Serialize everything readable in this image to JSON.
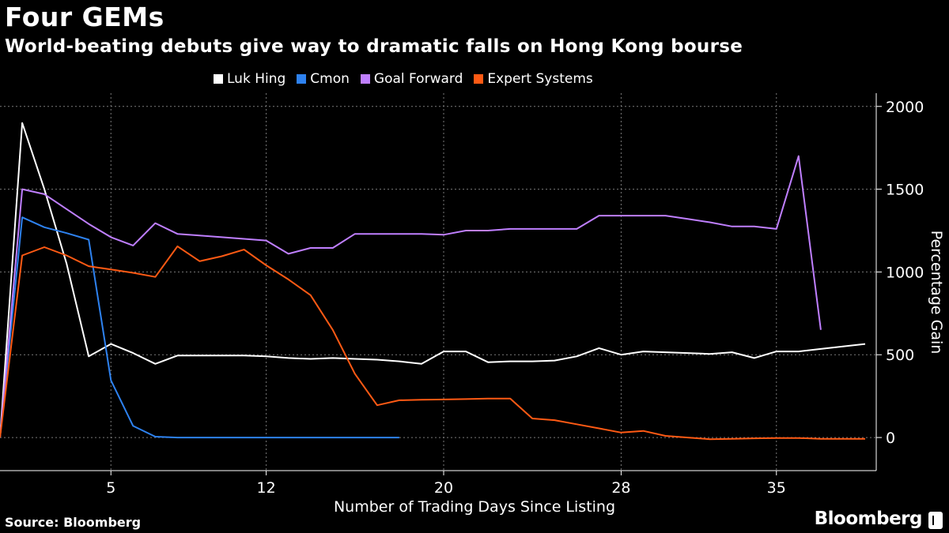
{
  "header": {
    "title": "Four GEMs",
    "subtitle": "World-beating debuts give way to dramatic falls on Hong Kong bourse"
  },
  "footer": {
    "source": "Source: Bloomberg",
    "brand": "Bloomberg"
  },
  "chart_data": {
    "type": "line",
    "xlabel": "Number of Trading Days Since Listing",
    "ylabel": "Percentage Gain",
    "xlim": [
      0,
      39.5
    ],
    "ylim": [
      -200,
      2080
    ],
    "x_ticks": [
      5,
      12,
      20,
      28,
      35
    ],
    "y_ticks": [
      0,
      500,
      1000,
      1500,
      2000
    ],
    "grid": true,
    "legend_position": "top",
    "series": [
      {
        "name": "Luk Hing",
        "color": "#ffffff",
        "x": [
          0,
          1,
          2,
          3,
          4,
          5,
          6,
          7,
          8,
          9,
          10,
          11,
          12,
          13,
          14,
          15,
          16,
          17,
          18,
          19,
          20,
          21,
          22,
          23,
          24,
          25,
          26,
          27,
          28,
          29,
          30,
          31,
          32,
          33,
          34,
          35,
          36,
          37,
          38,
          39
        ],
        "values": [
          0,
          1900,
          1500,
          1050,
          490,
          565,
          510,
          445,
          495,
          495,
          495,
          495,
          490,
          480,
          475,
          480,
          475,
          470,
          460,
          445,
          520,
          520,
          455,
          460,
          460,
          465,
          490,
          540,
          500,
          520,
          515,
          510,
          505,
          515,
          480,
          520,
          520,
          535,
          550,
          565
        ]
      },
      {
        "name": "Cmon",
        "color": "#2e82f0",
        "x": [
          0,
          1,
          2,
          3,
          4,
          5,
          6,
          7,
          8,
          9,
          10,
          11,
          12,
          13,
          14,
          15,
          16,
          17,
          18
        ],
        "values": [
          0,
          1330,
          1270,
          1235,
          1195,
          345,
          70,
          5,
          0,
          0,
          0,
          0,
          0,
          0,
          0,
          0,
          0,
          0,
          0
        ]
      },
      {
        "name": "Goal Forward",
        "color": "#bf7fff",
        "x": [
          0,
          1,
          2,
          3,
          4,
          5,
          6,
          7,
          8,
          9,
          10,
          11,
          12,
          13,
          14,
          15,
          16,
          17,
          18,
          19,
          20,
          21,
          22,
          23,
          24,
          25,
          26,
          27,
          28,
          29,
          30,
          31,
          32,
          33,
          34,
          35,
          36,
          37
        ],
        "values": [
          0,
          1500,
          1470,
          1380,
          1290,
          1210,
          1160,
          1295,
          1230,
          1220,
          1210,
          1200,
          1190,
          1110,
          1145,
          1145,
          1230,
          1230,
          1230,
          1230,
          1225,
          1250,
          1250,
          1260,
          1260,
          1260,
          1260,
          1340,
          1340,
          1340,
          1340,
          1320,
          1300,
          1275,
          1275,
          1260,
          1700,
          650
        ]
      },
      {
        "name": "Expert Systems",
        "color": "#ff5a14",
        "x": [
          0,
          1,
          2,
          3,
          4,
          5,
          6,
          7,
          8,
          9,
          10,
          11,
          12,
          13,
          14,
          15,
          16,
          17,
          18,
          19,
          20,
          21,
          22,
          23,
          24,
          25,
          26,
          27,
          28,
          29,
          30,
          31,
          32,
          33,
          34,
          35,
          36,
          37,
          38,
          39
        ],
        "values": [
          0,
          1100,
          1150,
          1100,
          1035,
          1015,
          995,
          970,
          1155,
          1065,
          1095,
          1135,
          1040,
          955,
          860,
          650,
          385,
          195,
          225,
          228,
          230,
          232,
          235,
          235,
          115,
          105,
          80,
          55,
          30,
          40,
          10,
          0,
          -10,
          -8,
          -5,
          -3,
          -3,
          -8,
          -8,
          -8
        ]
      }
    ]
  }
}
